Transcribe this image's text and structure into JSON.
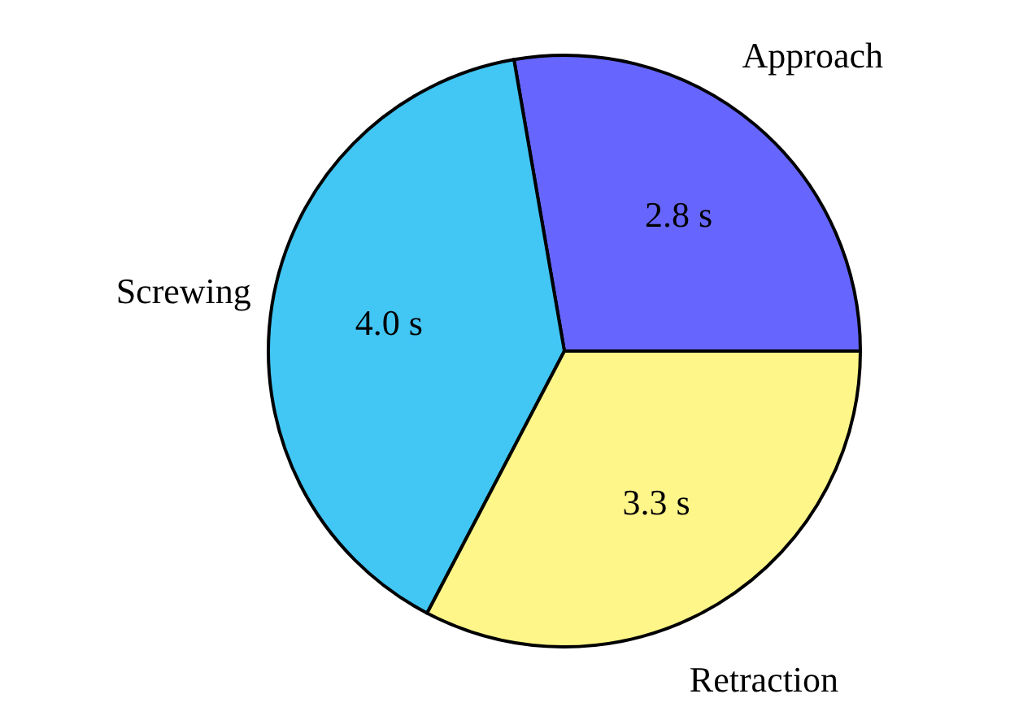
{
  "chart_data": {
    "type": "pie",
    "categories": [
      "Approach",
      "Screwing",
      "Retraction"
    ],
    "values": [
      2.8,
      4.0,
      3.3
    ],
    "value_labels": [
      "2.8 s",
      "4.0 s",
      "3.3 s"
    ],
    "colors": [
      "#6666ff",
      "#42c6f4",
      "#fff68a"
    ]
  }
}
